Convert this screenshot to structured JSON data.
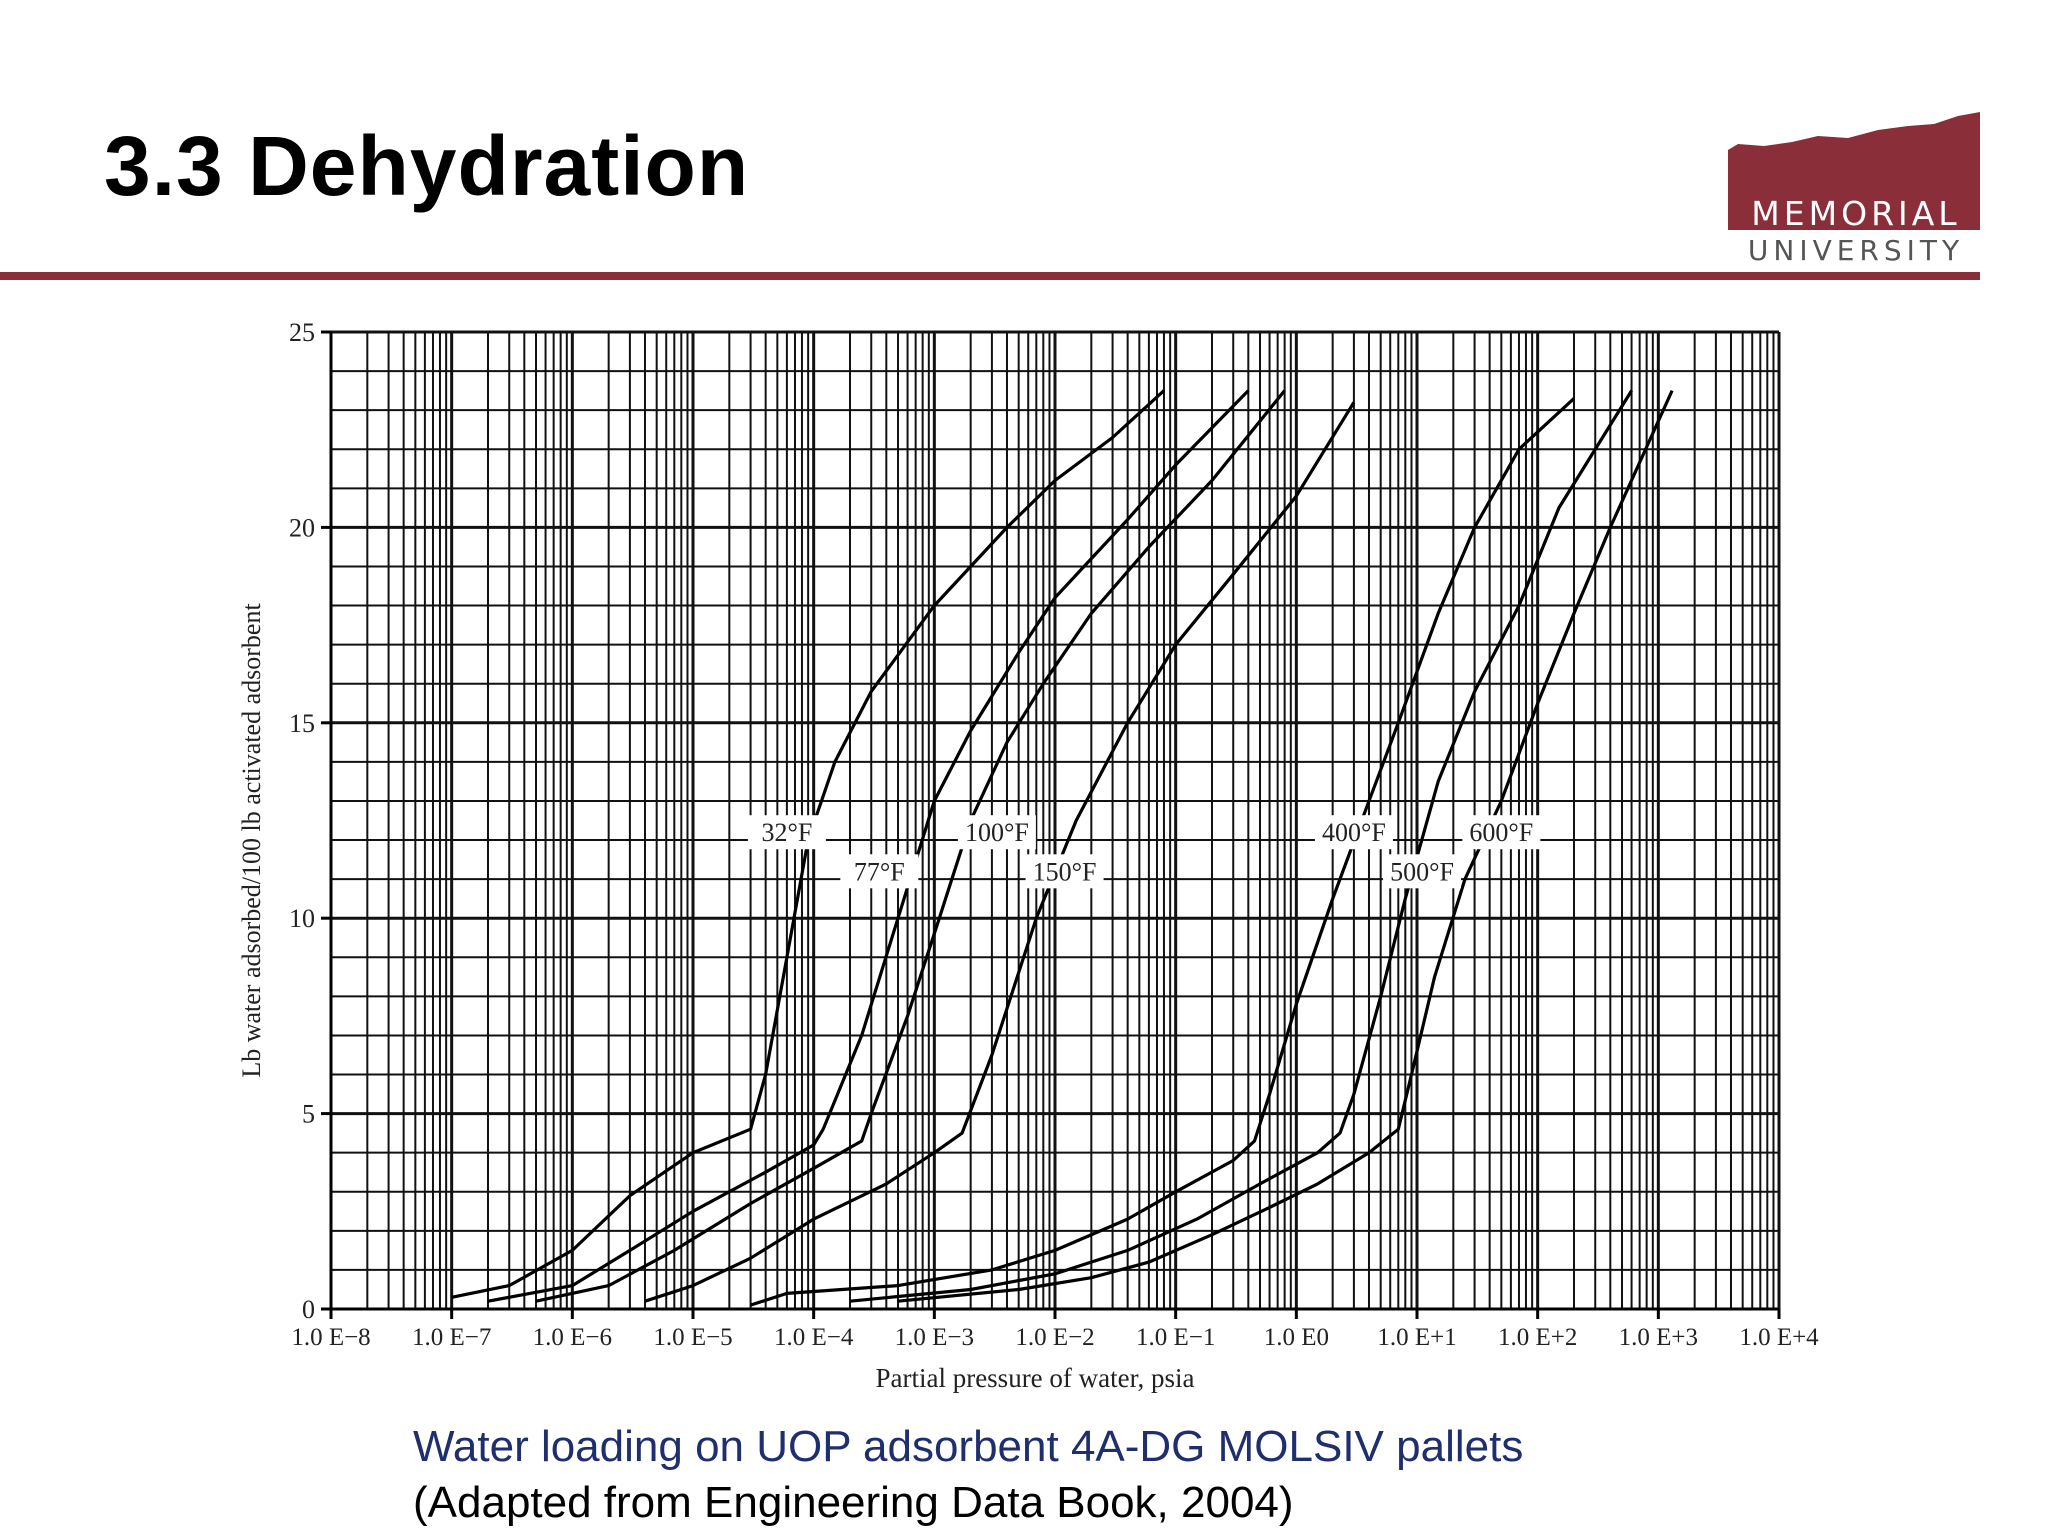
{
  "slide": {
    "title": "3.3 Dehydration",
    "logo_text_1": "MEMORIAL",
    "logo_text_2": "UNIVERSITY",
    "brand_color": "#8a2f3a",
    "caption_1": "Water loading on UOP adsorbent 4A-DG MOLSIV pallets",
    "caption_2": "(Adapted from Engineering Data Book, 2004)"
  },
  "chart_data": {
    "type": "line",
    "title": "",
    "xlabel": "Partial pressure of water, psia",
    "ylabel": "Lb water adsorbed/100 lb activated adsorbent",
    "x_scale": "log",
    "xlim": [
      1e-08,
      10000
    ],
    "ylim": [
      0,
      25
    ],
    "grid": true,
    "x_tick_labels": [
      "1.0 E−8",
      "1.0 E−7",
      "1.0 E−6",
      "1.0 E−5",
      "1.0 E−4",
      "1.0 E−3",
      "1.0 E−2",
      "1.0 E−1",
      "1.0 E0",
      "1.0 E+1",
      "1.0 E+2",
      "1.0 E+3",
      "1.0 E+4"
    ],
    "y_ticks": [
      0,
      5,
      10,
      15,
      20,
      25
    ],
    "y_tick_labels": [
      "0",
      "5",
      "10",
      "15",
      "20",
      "25"
    ],
    "series": [
      {
        "name": "32°F",
        "label_at": [
          6e-05,
          12.2
        ],
        "points": [
          [
            1e-07,
            0.3
          ],
          [
            3e-07,
            0.6
          ],
          [
            1e-06,
            1.5
          ],
          [
            3e-06,
            2.9
          ],
          [
            1e-05,
            4.0
          ],
          [
            3e-05,
            4.6
          ],
          [
            4e-05,
            6.0
          ],
          [
            6e-05,
            9.0
          ],
          [
            9e-05,
            12.0
          ],
          [
            0.00015,
            14.0
          ],
          [
            0.0003,
            15.8
          ],
          [
            0.001,
            18.0
          ],
          [
            0.004,
            20.0
          ],
          [
            0.01,
            21.2
          ],
          [
            0.03,
            22.3
          ],
          [
            0.08,
            23.5
          ]
        ]
      },
      {
        "name": "77°F",
        "label_at": [
          0.00035,
          11.2
        ],
        "points": [
          [
            2e-07,
            0.2
          ],
          [
            1e-06,
            0.6
          ],
          [
            3e-06,
            1.5
          ],
          [
            1e-05,
            2.5
          ],
          [
            4e-05,
            3.5
          ],
          [
            0.0001,
            4.2
          ],
          [
            0.00012,
            4.6
          ],
          [
            0.00025,
            7.0
          ],
          [
            0.0005,
            10.0
          ],
          [
            0.001,
            13.0
          ],
          [
            0.002,
            14.8
          ],
          [
            0.005,
            16.8
          ],
          [
            0.01,
            18.2
          ],
          [
            0.04,
            20.2
          ],
          [
            0.1,
            21.6
          ],
          [
            0.4,
            23.5
          ]
        ]
      },
      {
        "name": "100°F",
        "label_at": [
          0.0033,
          12.2
        ],
        "points": [
          [
            5e-07,
            0.2
          ],
          [
            2e-06,
            0.6
          ],
          [
            7e-06,
            1.5
          ],
          [
            3e-05,
            2.7
          ],
          [
            0.0001,
            3.6
          ],
          [
            0.00025,
            4.3
          ],
          [
            0.0003,
            5.0
          ],
          [
            0.0006,
            7.5
          ],
          [
            0.0011,
            10.0
          ],
          [
            0.002,
            12.5
          ],
          [
            0.004,
            14.5
          ],
          [
            0.008,
            16.0
          ],
          [
            0.02,
            17.8
          ],
          [
            0.06,
            19.5
          ],
          [
            0.2,
            21.2
          ],
          [
            0.8,
            23.5
          ]
        ]
      },
      {
        "name": "150°F",
        "label_at": [
          0.012,
          11.2
        ],
        "points": [
          [
            4e-06,
            0.2
          ],
          [
            1e-05,
            0.6
          ],
          [
            3e-05,
            1.3
          ],
          [
            0.0001,
            2.3
          ],
          [
            0.0004,
            3.2
          ],
          [
            0.001,
            4.0
          ],
          [
            0.0017,
            4.5
          ],
          [
            0.003,
            6.5
          ],
          [
            0.007,
            10.0
          ],
          [
            0.015,
            12.5
          ],
          [
            0.04,
            15.0
          ],
          [
            0.1,
            17.0
          ],
          [
            0.3,
            18.8
          ],
          [
            1.0,
            20.8
          ],
          [
            3.0,
            23.2
          ]
        ]
      },
      {
        "name": "400°F",
        "label_at": [
          3.0,
          12.2
        ],
        "points": [
          [
            3e-05,
            0.1
          ],
          [
            6e-05,
            0.4
          ],
          [
            0.0005,
            0.6
          ],
          [
            0.003,
            1.0
          ],
          [
            0.01,
            1.5
          ],
          [
            0.04,
            2.3
          ],
          [
            0.1,
            3.0
          ],
          [
            0.3,
            3.8
          ],
          [
            0.45,
            4.3
          ],
          [
            0.6,
            5.5
          ],
          [
            1.0,
            7.8
          ],
          [
            2.0,
            10.5
          ],
          [
            4.0,
            13.0
          ],
          [
            7.0,
            15.0
          ],
          [
            15.0,
            17.8
          ],
          [
            30.0,
            20.0
          ],
          [
            70.0,
            22.0
          ],
          [
            200.0,
            23.3
          ]
        ]
      },
      {
        "name": "500°F",
        "label_at": [
          11.0,
          11.2
        ],
        "points": [
          [
            0.0002,
            0.2
          ],
          [
            0.002,
            0.5
          ],
          [
            0.01,
            0.9
          ],
          [
            0.04,
            1.5
          ],
          [
            0.15,
            2.3
          ],
          [
            0.5,
            3.2
          ],
          [
            1.5,
            4.0
          ],
          [
            2.3,
            4.5
          ],
          [
            3.0,
            5.5
          ],
          [
            5.0,
            8.0
          ],
          [
            8.0,
            10.5
          ],
          [
            15.0,
            13.5
          ],
          [
            30.0,
            15.8
          ],
          [
            70.0,
            18.0
          ],
          [
            150.0,
            20.5
          ],
          [
            600.0,
            23.5
          ]
        ]
      },
      {
        "name": "600°F",
        "label_at": [
          50.0,
          12.2
        ],
        "points": [
          [
            0.0005,
            0.2
          ],
          [
            0.005,
            0.5
          ],
          [
            0.02,
            0.8
          ],
          [
            0.06,
            1.2
          ],
          [
            0.2,
            1.9
          ],
          [
            0.6,
            2.6
          ],
          [
            1.5,
            3.2
          ],
          [
            4.0,
            4.0
          ],
          [
            7.0,
            4.6
          ],
          [
            9.0,
            6.0
          ],
          [
            14.0,
            8.5
          ],
          [
            25.0,
            11.0
          ],
          [
            50.0,
            13.0
          ],
          [
            100.0,
            15.5
          ],
          [
            200.0,
            17.8
          ],
          [
            400.0,
            20.0
          ],
          [
            1300.0,
            23.5
          ]
        ]
      }
    ]
  }
}
